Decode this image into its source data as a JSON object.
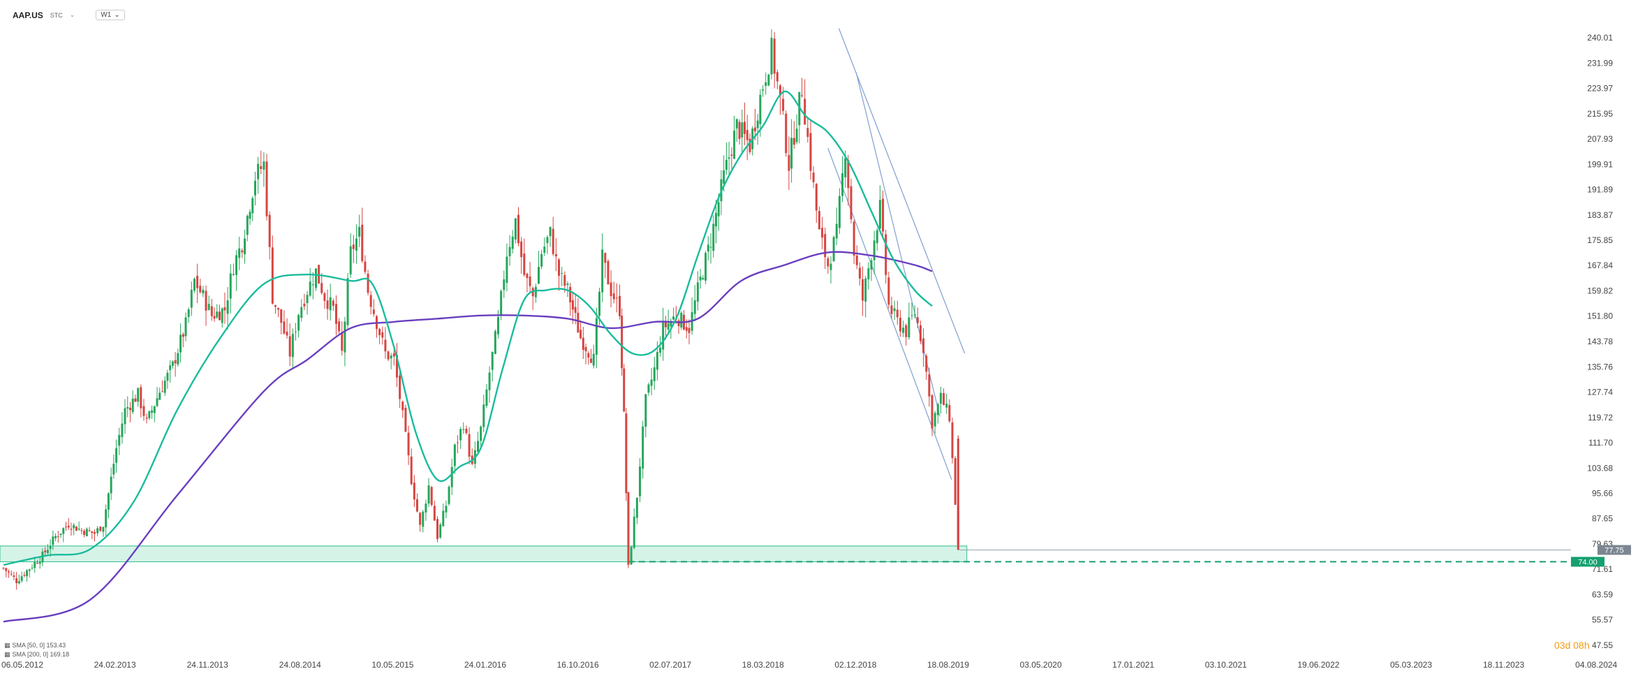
{
  "header": {
    "symbol": "AAP.US",
    "sub": "STC",
    "timeframe": "W1"
  },
  "timer": "03d 08h",
  "legend": [
    {
      "icon": "eye-icon",
      "text": "SMA [50, 0]  153.43"
    },
    {
      "icon": "eye-icon",
      "text": "SMA [200, 0]  169.18"
    }
  ],
  "colors": {
    "up": "#26a65b",
    "down": "#d64541",
    "sma50": "#1abc9c",
    "sma200": "#6a3fbf",
    "zone": "#c8efe0",
    "channel": "#6b8fc7"
  },
  "chart_data": {
    "type": "candlestick",
    "title": "",
    "x_ticks": [
      "06.05.2012",
      "24.02.2013",
      "24.11.2013",
      "24.08.2014",
      "10.05.2015",
      "24.01.2016",
      "16.10.2016",
      "02.07.2017",
      "18.03.2018",
      "02.12.2018",
      "18.08.2019",
      "03.05.2020",
      "17.01.2021",
      "03.10.2021",
      "19.06.2022",
      "05.03.2023",
      "18.11.2023",
      "04.08.2024"
    ],
    "y_ticks": [
      240.01,
      231.99,
      223.97,
      215.95,
      207.93,
      199.91,
      191.89,
      183.87,
      175.85,
      167.84,
      159.82,
      151.8,
      143.78,
      135.76,
      127.74,
      119.72,
      111.7,
      103.68,
      95.66,
      87.65,
      79.63,
      71.61,
      63.59,
      55.57,
      47.55
    ],
    "ylim": [
      47.55,
      240.01
    ],
    "last_price": 77.75,
    "support_level": 74.0,
    "support_zone": [
      74.0,
      79.0
    ],
    "price_path": [
      [
        0,
        72
      ],
      [
        3,
        68
      ],
      [
        6,
        72
      ],
      [
        9,
        76
      ],
      [
        12,
        82
      ],
      [
        15,
        86
      ],
      [
        18,
        84
      ],
      [
        21,
        83
      ],
      [
        23,
        86
      ],
      [
        26,
        110
      ],
      [
        28,
        122
      ],
      [
        31,
        127
      ],
      [
        33,
        118
      ],
      [
        36,
        128
      ],
      [
        39,
        136
      ],
      [
        42,
        149
      ],
      [
        44,
        163
      ],
      [
        46,
        158
      ],
      [
        48,
        152
      ],
      [
        51,
        154
      ],
      [
        53,
        168
      ],
      [
        55,
        175
      ],
      [
        58,
        196
      ],
      [
        60,
        200
      ],
      [
        62,
        158
      ],
      [
        64,
        150
      ],
      [
        66,
        140
      ],
      [
        68,
        153
      ],
      [
        70,
        160
      ],
      [
        72,
        166
      ],
      [
        74,
        158
      ],
      [
        76,
        154
      ],
      [
        78,
        140
      ],
      [
        80,
        172
      ],
      [
        82,
        178
      ],
      [
        84,
        160
      ],
      [
        86,
        150
      ],
      [
        88,
        140
      ],
      [
        90,
        138
      ],
      [
        92,
        120
      ],
      [
        94,
        100
      ],
      [
        96,
        85
      ],
      [
        98,
        98
      ],
      [
        100,
        82
      ],
      [
        102,
        92
      ],
      [
        104,
        110
      ],
      [
        106,
        118
      ],
      [
        108,
        104
      ],
      [
        110,
        116
      ],
      [
        112,
        134
      ],
      [
        114,
        150
      ],
      [
        116,
        172
      ],
      [
        118,
        182
      ],
      [
        120,
        165
      ],
      [
        122,
        158
      ],
      [
        124,
        172
      ],
      [
        126,
        178
      ],
      [
        128,
        165
      ],
      [
        130,
        160
      ],
      [
        133,
        145
      ],
      [
        136,
        138
      ],
      [
        138,
        170
      ],
      [
        140,
        160
      ],
      [
        142,
        154
      ],
      [
        143,
        120
      ],
      [
        144,
        72
      ],
      [
        146,
        95
      ],
      [
        148,
        125
      ],
      [
        150,
        135
      ],
      [
        152,
        148
      ],
      [
        155,
        152
      ],
      [
        158,
        148
      ],
      [
        160,
        160
      ],
      [
        163,
        176
      ],
      [
        166,
        196
      ],
      [
        169,
        212
      ],
      [
        172,
        206
      ],
      [
        175,
        225
      ],
      [
        177,
        236
      ],
      [
        179,
        220
      ],
      [
        181,
        200
      ],
      [
        184,
        224
      ],
      [
        186,
        200
      ],
      [
        188,
        178
      ],
      [
        190,
        168
      ],
      [
        192,
        178
      ],
      [
        194,
        205
      ],
      [
        196,
        172
      ],
      [
        198,
        157
      ],
      [
        200,
        172
      ],
      [
        202,
        186
      ],
      [
        204,
        155
      ],
      [
        206,
        150
      ],
      [
        208,
        147
      ],
      [
        210,
        153
      ],
      [
        212,
        142
      ],
      [
        214,
        118
      ],
      [
        216,
        126
      ],
      [
        218,
        120
      ],
      [
        220,
        79
      ]
    ],
    "sma_50": [
      [
        0,
        73
      ],
      [
        10,
        76
      ],
      [
        20,
        78
      ],
      [
        30,
        93
      ],
      [
        40,
        122
      ],
      [
        50,
        145
      ],
      [
        60,
        162
      ],
      [
        70,
        165
      ],
      [
        80,
        163
      ],
      [
        85,
        162
      ],
      [
        90,
        142
      ],
      [
        95,
        115
      ],
      [
        100,
        100
      ],
      [
        105,
        104
      ],
      [
        110,
        110
      ],
      [
        115,
        135
      ],
      [
        120,
        157
      ],
      [
        125,
        160
      ],
      [
        130,
        160
      ],
      [
        135,
        155
      ],
      [
        140,
        146
      ],
      [
        145,
        140
      ],
      [
        150,
        141
      ],
      [
        155,
        151
      ],
      [
        160,
        171
      ],
      [
        165,
        190
      ],
      [
        170,
        203
      ],
      [
        175,
        212
      ],
      [
        180,
        223
      ],
      [
        185,
        215
      ],
      [
        190,
        210
      ],
      [
        195,
        200
      ],
      [
        200,
        185
      ],
      [
        205,
        170
      ],
      [
        210,
        160
      ],
      [
        214,
        155
      ]
    ],
    "sma_200": [
      [
        0,
        55
      ],
      [
        20,
        62
      ],
      [
        40,
        95
      ],
      [
        60,
        128
      ],
      [
        70,
        138
      ],
      [
        80,
        148
      ],
      [
        90,
        150
      ],
      [
        100,
        151
      ],
      [
        110,
        152
      ],
      [
        120,
        152
      ],
      [
        130,
        151
      ],
      [
        140,
        148
      ],
      [
        150,
        150
      ],
      [
        160,
        151
      ],
      [
        170,
        163
      ],
      [
        180,
        168
      ],
      [
        190,
        172
      ],
      [
        200,
        171
      ],
      [
        210,
        168
      ],
      [
        214,
        166
      ]
    ]
  }
}
